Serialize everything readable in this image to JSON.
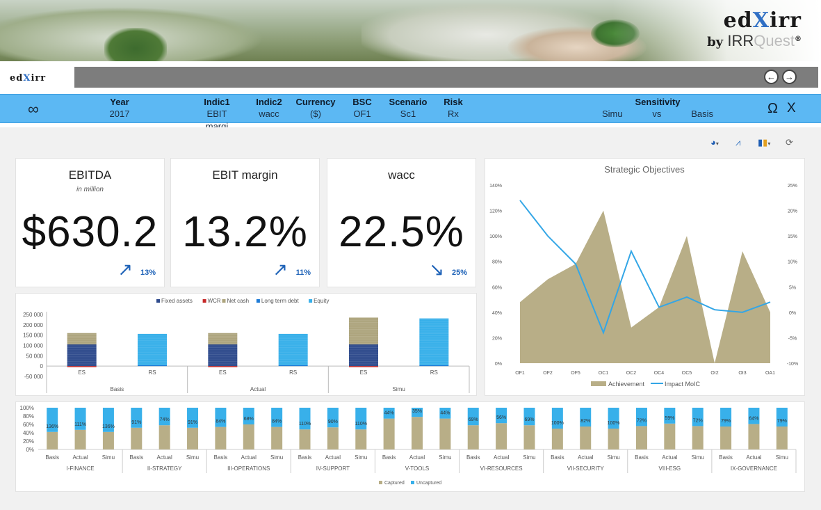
{
  "brand": {
    "name_pre": "ed",
    "name_x": "X",
    "name_post": "irr",
    "by": "by",
    "sub_a": "IRR",
    "sub_b": "Quest",
    "reg": "®"
  },
  "app": {
    "logo_pre": "ed",
    "logo_x": "X",
    "logo_post": "irr",
    "prev_icon": "arrow-left-circle-icon",
    "next_icon": "arrow-right-circle-icon"
  },
  "filters": {
    "infinity": "∞",
    "year": {
      "label": "Year",
      "value": "2017"
    },
    "indic1": {
      "label": "Indic1",
      "value": "EBIT margi"
    },
    "indic2": {
      "label": "Indic2",
      "value": "wacc"
    },
    "currency": {
      "label": "Currency",
      "value": "($)"
    },
    "bsc": {
      "label": "BSC",
      "value": "OF1"
    },
    "scenario": {
      "label": "Scenario",
      "value": "Sc1"
    },
    "risk": {
      "label": "Risk",
      "value": "Rx"
    },
    "sensitivity": {
      "label": "Sensitivity",
      "a": "Simu",
      "vs": "vs",
      "b": "Basis"
    },
    "omega": "Ω",
    "close": "X"
  },
  "toolbar": {
    "pie_icon": "◕",
    "line_icon": "⩘",
    "bar_icon": "▮",
    "refresh_icon": "⟳"
  },
  "kpis": [
    {
      "title": "EBITDA",
      "subtitle": "in million",
      "value": "$630.2",
      "trend_icon": "↗",
      "trend": "13%"
    },
    {
      "title": "EBIT margin",
      "subtitle": "",
      "value": "13.2%",
      "trend_icon": "↗",
      "trend": "11%"
    },
    {
      "title": "wacc",
      "subtitle": "",
      "value": "22.5%",
      "trend_icon": "↘",
      "trend": "25%"
    }
  ],
  "colors": {
    "accent": "#5cb8f3",
    "fixed_assets": "#2e4a8c",
    "wcr": "#c62828",
    "net_cash": "#ada47d",
    "ltd": "#1e7bd6",
    "equity": "#38b0ea",
    "achievement": "#b8ae87",
    "impact": "#33a6e6"
  },
  "chart_data": [
    {
      "type": "bar",
      "legend": [
        "Fixed assets",
        "WCR",
        "Net cash",
        "Long term debt",
        "Equity"
      ],
      "groups": [
        "Basis",
        "Actual",
        "Simu"
      ],
      "categories": [
        "ES",
        "RS",
        "ES",
        "RS",
        "ES",
        "RS"
      ],
      "ylim": [
        -50000,
        250000
      ],
      "yticks": [
        "250 000",
        "200 000",
        "150 000",
        "100 000",
        "50 000",
        "0",
        "-50 000"
      ],
      "series": [
        {
          "name": "Fixed assets",
          "values": [
            105000,
            0,
            105000,
            0,
            105000,
            0
          ]
        },
        {
          "name": "WCR",
          "values": [
            -5000,
            0,
            -5000,
            0,
            -5000,
            0
          ]
        },
        {
          "name": "Net cash",
          "values": [
            55000,
            0,
            55000,
            0,
            130000,
            0
          ]
        },
        {
          "name": "Long term debt",
          "values": [
            0,
            4000,
            0,
            4000,
            0,
            4000
          ]
        },
        {
          "name": "Equity",
          "values": [
            0,
            152000,
            0,
            152000,
            0,
            227000
          ]
        }
      ]
    },
    {
      "type": "area",
      "title": "Strategic Objectives",
      "categories": [
        "OF1",
        "OF2",
        "OF5",
        "OC1",
        "OC2",
        "OC4",
        "OC5",
        "OI2",
        "OI3",
        "OA1"
      ],
      "yticks_left": [
        "140%",
        "120%",
        "100%",
        "80%",
        "60%",
        "40%",
        "20%",
        "0%"
      ],
      "yticks_right": [
        "25%",
        "20%",
        "15%",
        "10%",
        "5%",
        "0%",
        "-5%",
        "-10%"
      ],
      "ylim_left": [
        0,
        140
      ],
      "ylim_right": [
        -10,
        25
      ],
      "series": [
        {
          "name": "Achievement",
          "axis": "left",
          "values": [
            48,
            66,
            78,
            120,
            28,
            44,
            100,
            0,
            88,
            40
          ]
        },
        {
          "name": "Impact MoIC",
          "axis": "right",
          "values": [
            22,
            15,
            9.5,
            -4,
            12,
            1,
            3,
            0.5,
            0,
            2
          ]
        }
      ]
    },
    {
      "type": "bar",
      "ylim": [
        0,
        100
      ],
      "yticks": [
        "100%",
        "80%",
        "60%",
        "40%",
        "20%",
        "0%"
      ],
      "legend": [
        "Captured",
        "Uncaptured"
      ],
      "groups": [
        "I-FINANCE",
        "II-STRATEGY",
        "III-OPERATIONS",
        "IV-SUPPORT",
        "V-TOOLS",
        "VI-RESOURCES",
        "VII-SECURITY",
        "VIII-ESG",
        "IX-GOVERNANCE"
      ],
      "subcategories": [
        "Basis",
        "Actual",
        "Simu"
      ],
      "captured": [
        42,
        47,
        42,
        52,
        58,
        52,
        54,
        60,
        54,
        48,
        53,
        48,
        74,
        78,
        74,
        58,
        63,
        58,
        50,
        55,
        50,
        56,
        62,
        56,
        55,
        61,
        55
      ],
      "labels": [
        "136%",
        "111%",
        "136%",
        "91%",
        "74%",
        "91%",
        "84%",
        "68%",
        "84%",
        "110%",
        "90%",
        "110%",
        "44%",
        "35%",
        "44%",
        "69%",
        "56%",
        "69%",
        "100%",
        "82%",
        "100%",
        "72%",
        "59%",
        "72%",
        "79%",
        "64%",
        "79%"
      ]
    }
  ]
}
